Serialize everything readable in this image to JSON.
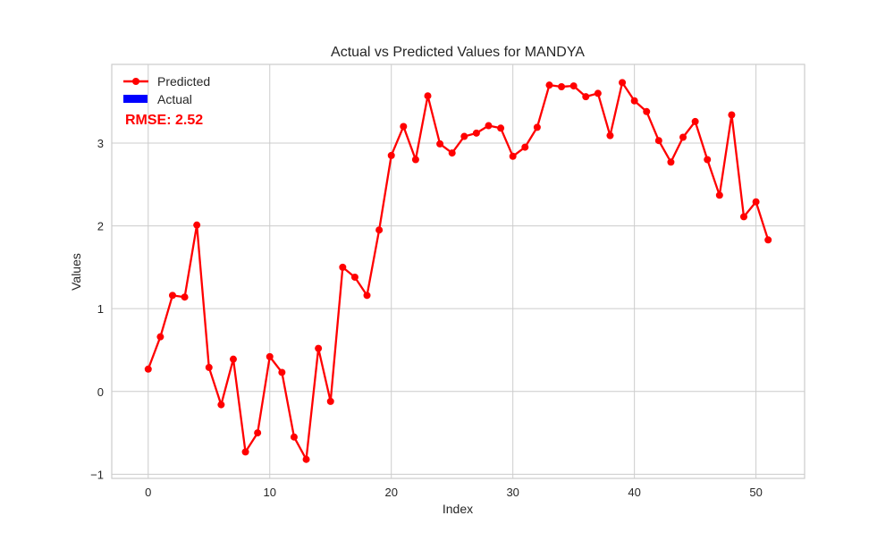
{
  "chart_data": {
    "type": "line",
    "title": "Actual vs Predicted Values for MANDYA",
    "xlabel": "Index",
    "ylabel": "Values",
    "xlim": [
      -3,
      54
    ],
    "ylim": [
      -1.05,
      3.95
    ],
    "grid": true,
    "legend_position": "upper-left",
    "x_ticks": [
      0,
      10,
      20,
      30,
      40,
      50
    ],
    "y_ticks": [
      -1,
      0,
      1,
      2,
      3
    ],
    "x_tick_labels": [
      "0",
      "10",
      "20",
      "30",
      "40",
      "50"
    ],
    "y_tick_labels": [
      "−1",
      "0",
      "1",
      "2",
      "3"
    ],
    "annotation": "RMSE: 2.52",
    "series": [
      {
        "name": "Predicted",
        "kind": "line-marker",
        "color": "#ff0000",
        "x": [
          0,
          1,
          2,
          3,
          4,
          5,
          6,
          7,
          8,
          9,
          10,
          11,
          12,
          13,
          14,
          15,
          16,
          17,
          18,
          19,
          20,
          21,
          22,
          23,
          24,
          25,
          26,
          27,
          28,
          29,
          30,
          31,
          32,
          33,
          34,
          35,
          36,
          37,
          38,
          39,
          40,
          41,
          42,
          43,
          44,
          45,
          46,
          47,
          48,
          49,
          50,
          51
        ],
        "values": [
          0.27,
          0.66,
          1.16,
          1.14,
          2.01,
          0.29,
          -0.16,
          0.39,
          -0.73,
          -0.5,
          0.42,
          0.23,
          -0.55,
          -0.82,
          0.52,
          -0.12,
          1.5,
          1.38,
          1.16,
          1.95,
          2.85,
          3.2,
          2.8,
          3.57,
          2.99,
          2.88,
          3.08,
          3.12,
          3.21,
          3.18,
          2.84,
          2.95,
          3.19,
          3.7,
          3.68,
          3.69,
          3.56,
          3.6,
          3.09,
          3.73,
          3.51,
          3.38,
          3.03,
          2.77,
          3.07,
          3.26,
          2.8,
          2.37,
          3.34,
          2.11,
          2.29,
          1.83
        ]
      },
      {
        "name": "Actual",
        "kind": "bar",
        "color": "#0000ff",
        "values": []
      }
    ]
  }
}
